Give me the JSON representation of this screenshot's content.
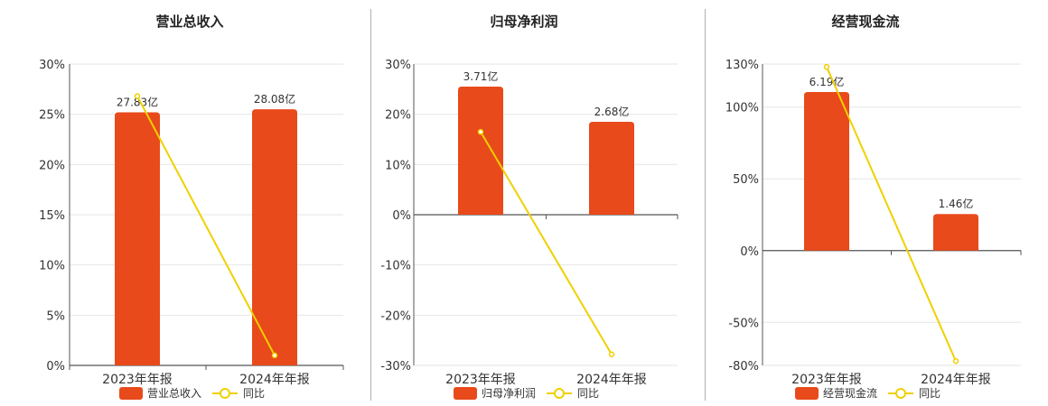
{
  "colors": {
    "bar": "#e84a1b",
    "line": "#f0d000",
    "grid": "#e6e6e6",
    "axis": "#555555"
  },
  "legend_line_label": "同比",
  "chart_data": [
    {
      "type": "bar",
      "title": "营业总收入",
      "categories": [
        "2023年年报",
        "2024年年报"
      ],
      "series": [
        {
          "name": "营业总收入",
          "type": "bar",
          "values": [
            25.2,
            25.5
          ],
          "labels": [
            "27.83亿",
            "28.08亿"
          ]
        },
        {
          "name": "同比",
          "type": "line",
          "values": [
            26.8,
            1.0
          ]
        }
      ],
      "yticks": [
        "0%",
        "5%",
        "10%",
        "15%",
        "20%",
        "25%",
        "30%"
      ],
      "ylim": [
        0,
        30
      ],
      "ytick_values": [
        0,
        5,
        10,
        15,
        20,
        25,
        30
      ],
      "grid": true,
      "legend_position": "bottom"
    },
    {
      "type": "bar",
      "title": "归母净利润",
      "categories": [
        "2023年年报",
        "2024年年报"
      ],
      "series": [
        {
          "name": "归母净利润",
          "type": "bar",
          "values": [
            25.5,
            18.5
          ],
          "labels": [
            "3.71亿",
            "2.68亿"
          ]
        },
        {
          "name": "同比",
          "type": "line",
          "values": [
            16.5,
            -27.8
          ]
        }
      ],
      "yticks": [
        "-30%",
        "-20%",
        "-10%",
        "0%",
        "10%",
        "20%",
        "30%"
      ],
      "ylim": [
        -30,
        30
      ],
      "ytick_values": [
        -30,
        -20,
        -10,
        0,
        10,
        20,
        30
      ],
      "grid": true,
      "legend_position": "bottom"
    },
    {
      "type": "bar",
      "title": "经营现金流",
      "categories": [
        "2023年年报",
        "2024年年报"
      ],
      "series": [
        {
          "name": "经营现金流",
          "type": "bar",
          "values": [
            110.5,
            25.5
          ],
          "labels": [
            "6.19亿",
            "1.46亿"
          ]
        },
        {
          "name": "同比",
          "type": "line",
          "values": [
            128,
            -77
          ]
        }
      ],
      "yticks": [
        "-80%",
        "-50%",
        "0%",
        "50%",
        "100%",
        "130%"
      ],
      "ylim": [
        -80,
        130
      ],
      "ytick_values": [
        -80,
        -50,
        0,
        50,
        100,
        130
      ],
      "grid": true,
      "legend_position": "bottom"
    }
  ]
}
